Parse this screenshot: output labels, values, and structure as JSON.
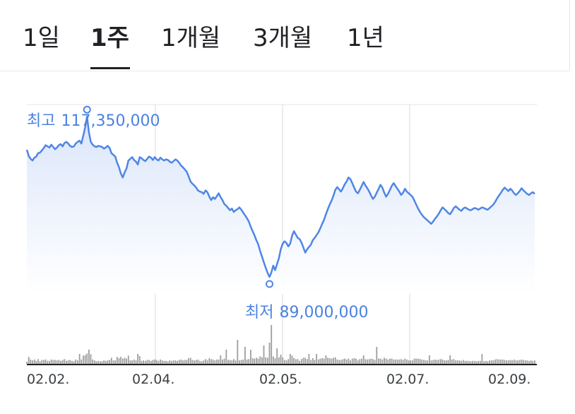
{
  "tabs": [
    {
      "label": "1일",
      "active": false
    },
    {
      "label": "1주",
      "active": true
    },
    {
      "label": "1개월",
      "active": false
    },
    {
      "label": "3개월",
      "active": false
    },
    {
      "label": "1년",
      "active": false
    }
  ],
  "colors": {
    "line": "#4f86e5",
    "fill_top": "#dbe6fa",
    "annotation": "#4b82e0",
    "grid": "#d9d9d9",
    "volume": "#9e9e9e"
  },
  "chart_data": {
    "type": "area",
    "x_ticks": [
      "02.02.",
      "02.04.",
      "02.05.",
      "02.07.",
      "02.09."
    ],
    "annotations": {
      "high": {
        "label": "최고",
        "value_text": "117,350,000",
        "value": 117350000
      },
      "low": {
        "label": "최저",
        "value_text": "89,000,000",
        "value": 89000000
      }
    },
    "ylim": [
      86000000,
      119500000
    ],
    "values": [
      111500000,
      110400000,
      109900000,
      109600000,
      110100000,
      110300000,
      110900000,
      111000000,
      111400000,
      111800000,
      112300000,
      112100000,
      111900000,
      112400000,
      112000000,
      111600000,
      111900000,
      112300000,
      112500000,
      112100000,
      112700000,
      112900000,
      112600000,
      112200000,
      112000000,
      112100000,
      112600000,
      112900000,
      113100000,
      112600000,
      114000000,
      115500000,
      117350000,
      114600000,
      112900000,
      112400000,
      112100000,
      112000000,
      112200000,
      112100000,
      112000000,
      111700000,
      111900000,
      112200000,
      111800000,
      110900000,
      110600000,
      110300000,
      109200000,
      108400000,
      107300000,
      106600000,
      107500000,
      108200000,
      109600000,
      109900000,
      110200000,
      109700000,
      109400000,
      108900000,
      110200000,
      110000000,
      109700000,
      109500000,
      109900000,
      110300000,
      110100000,
      109700000,
      110200000,
      109800000,
      109600000,
      110100000,
      109800000,
      109600000,
      109800000,
      109700000,
      109400000,
      109200000,
      109500000,
      109800000,
      109600000,
      109200000,
      108700000,
      108400000,
      108000000,
      107600000,
      106800000,
      105900000,
      105500000,
      105200000,
      104800000,
      104300000,
      104100000,
      104000000,
      103700000,
      104300000,
      104000000,
      103200000,
      102600000,
      103100000,
      102800000,
      103300000,
      103800000,
      103100000,
      102600000,
      101900000,
      101600000,
      101200000,
      100800000,
      101100000,
      100500000,
      100800000,
      101000000,
      101300000,
      100900000,
      100400000,
      99900000,
      99400000,
      98800000,
      97900000,
      97100000,
      96400000,
      95500000,
      94800000,
      93600000,
      92600000,
      91600000,
      90600000,
      89700000,
      89000000,
      89800000,
      91000000,
      90200000,
      91300000,
      92300000,
      93900000,
      94900000,
      95300000,
      95000000,
      94400000,
      94900000,
      96300000,
      97100000,
      96500000,
      95900000,
      95700000,
      95100000,
      94200000,
      93300000,
      93900000,
      94300000,
      94700000,
      95500000,
      95900000,
      96400000,
      96900000,
      97600000,
      98400000,
      99100000,
      100100000,
      101000000,
      101800000,
      102500000,
      103400000,
      104400000,
      104900000,
      104500000,
      104100000,
      104700000,
      105400000,
      105900000,
      106600000,
      106300000,
      105600000,
      104800000,
      104100000,
      103800000,
      104400000,
      105100000,
      105800000,
      105200000,
      104700000,
      104100000,
      103400000,
      102800000,
      103200000,
      103900000,
      104600000,
      105300000,
      104800000,
      103900000,
      103200000,
      103700000,
      104400000,
      105100000,
      105600000,
      105100000,
      104600000,
      104100000,
      103500000,
      103900000,
      104600000,
      104100000,
      103800000,
      103500000,
      103200000,
      102500000,
      101800000,
      101100000,
      100500000,
      100000000,
      99600000,
      99300000,
      99000000,
      98700000,
      98400000,
      98800000,
      99300000,
      99700000,
      100200000,
      100800000,
      101300000,
      101000000,
      100700000,
      100300000,
      100100000,
      100600000,
      101200000,
      101500000,
      101200000,
      100900000,
      100700000,
      101100000,
      101300000,
      101100000,
      100900000,
      100800000,
      101000000,
      101200000,
      101100000,
      100900000,
      101100000,
      101300000,
      101200000,
      101000000,
      100900000,
      101200000,
      101500000,
      101800000,
      102300000,
      102900000,
      103400000,
      103900000,
      104400000,
      104800000,
      104500000,
      104200000,
      104600000,
      104300000,
      103800000,
      103500000,
      103800000,
      104200000,
      104700000,
      104300000,
      104000000,
      103700000,
      103500000,
      103800000,
      104000000,
      103700000
    ]
  }
}
